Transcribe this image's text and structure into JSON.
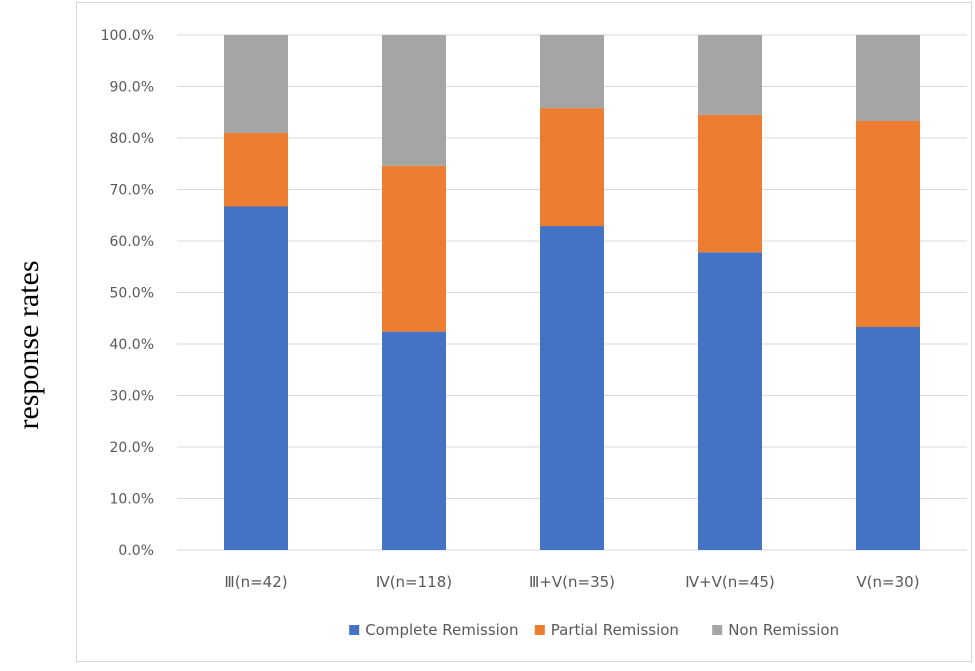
{
  "chart_data": {
    "type": "bar",
    "stacked": true,
    "ylabel": "response rates",
    "ylim": [
      0,
      100
    ],
    "ytick_step": 10,
    "ytick_format": "percent_1dp",
    "grid": true,
    "legend_position": "bottom",
    "categories": [
      "Ⅲ(n=42)",
      "Ⅳ(n=118)",
      "Ⅲ+Ⅴ(n=35)",
      "Ⅳ+Ⅴ(n=45)",
      "Ⅴ(n=30)"
    ],
    "series": [
      {
        "name": "Complete Remission",
        "color": "#4472c4",
        "values": [
          66.7,
          42.4,
          62.9,
          57.8,
          43.3
        ]
      },
      {
        "name": "Partial Remission",
        "color": "#ed7d31",
        "values": [
          14.3,
          32.2,
          22.9,
          26.7,
          40.0
        ]
      },
      {
        "name": "Non Remission",
        "color": "#a5a5a5",
        "values": [
          19.0,
          25.4,
          14.2,
          15.5,
          16.7
        ]
      }
    ]
  }
}
